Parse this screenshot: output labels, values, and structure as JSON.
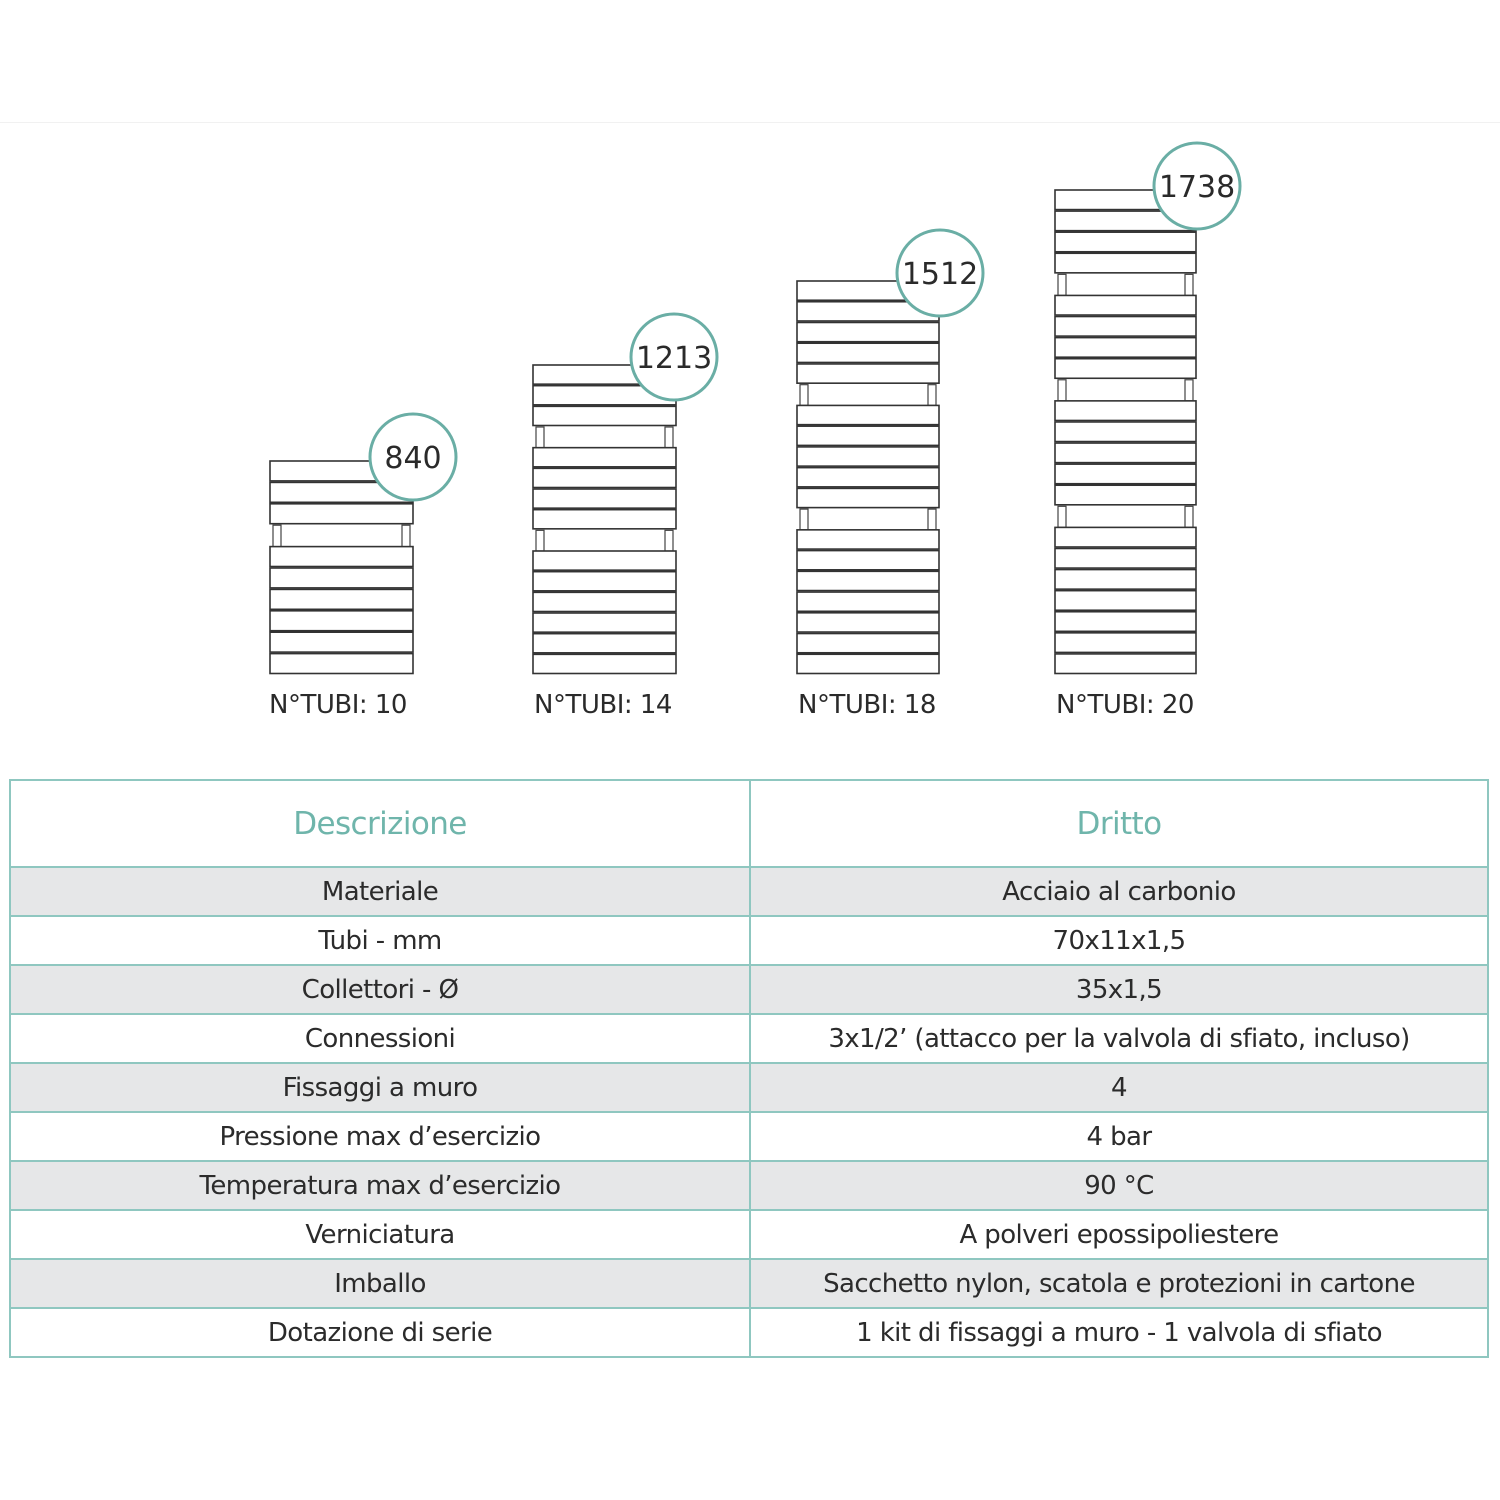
{
  "models": [
    {
      "height": "840",
      "tubes_label": "N°TUBI: 10"
    },
    {
      "height": "1213",
      "tubes_label": "N°TUBI: 14"
    },
    {
      "height": "1512",
      "tubes_label": "N°TUBI: 18"
    },
    {
      "height": "1738",
      "tubes_label": "N°TUBI: 20"
    }
  ],
  "colors": {
    "accent": "#6aaea5",
    "table_border": "#8fc7c0",
    "row_shade": "#e6e7e8"
  },
  "table": {
    "headers": [
      "Descrizione",
      "Dritto"
    ],
    "rows": [
      [
        "Materiale",
        "Acciaio al carbonio"
      ],
      [
        "Tubi - mm",
        "70x11x1,5"
      ],
      [
        "Collettori - Ø",
        "35x1,5"
      ],
      [
        "Connessioni",
        "3x1/2’ (attacco per la valvola di sfiato, incluso)"
      ],
      [
        "Fissaggi a muro",
        "4"
      ],
      [
        "Pressione max d’esercizio",
        "4 bar"
      ],
      [
        "Temperatura max d’esercizio",
        "90 °C"
      ],
      [
        "Verniciatura",
        "A polveri epossipoliestere"
      ],
      [
        "Imballo",
        "Sacchetto nylon, scatola e protezioni in cartone"
      ],
      [
        "Dotazione di serie",
        "1 kit di fissaggi a muro - 1 valvola di sfiato"
      ]
    ]
  }
}
